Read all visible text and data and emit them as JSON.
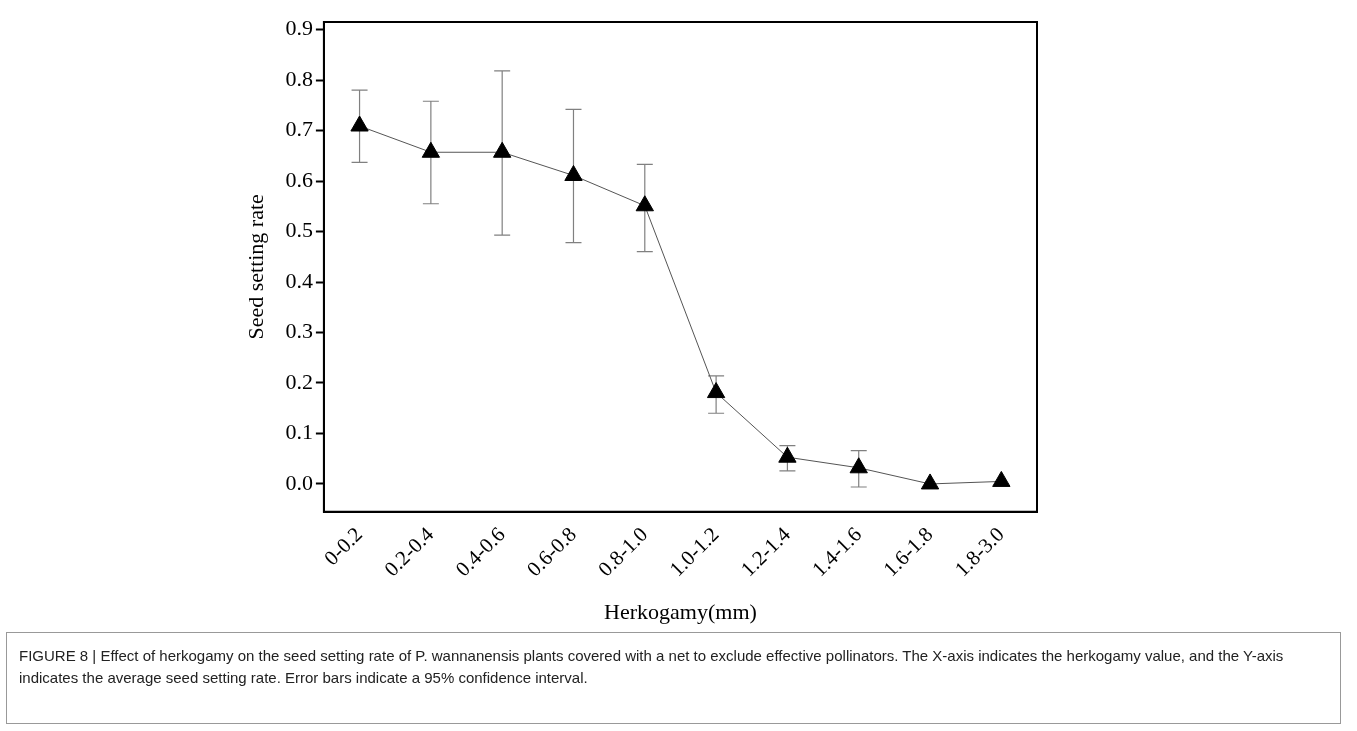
{
  "chart_data": {
    "type": "line",
    "xlabel": "Herkogamy(mm)",
    "ylabel": "Seed setting rate",
    "categories": [
      "0-0.2",
      "0.2-0.4",
      "0.4-0.6",
      "0.6-0.8",
      "0.8-1.0",
      "1.0-1.2",
      "1.2-1.4",
      "1.4-1.6",
      "1.6-1.8",
      "1.8-3.0"
    ],
    "series": [
      {
        "color": "#000000",
        "values": [
          0.709,
          0.657,
          0.657,
          0.611,
          0.551,
          0.181,
          0.053,
          0.032,
          0.0,
          0.005
        ],
        "errors": [
          [
            0.637,
            0.78
          ],
          [
            0.555,
            0.758
          ],
          [
            0.493,
            0.818
          ],
          [
            0.478,
            0.742
          ],
          [
            0.46,
            0.633
          ],
          [
            0.14,
            0.214
          ],
          [
            0.026,
            0.076
          ],
          [
            -0.006,
            0.066
          ],
          null,
          null
        ]
      }
    ],
    "ylim": [
      -0.055,
      0.915
    ],
    "yticks": [
      {
        "value": 0,
        "label": "0.0"
      },
      {
        "value": 0.1,
        "label": "0.1"
      },
      {
        "value": 0.2,
        "label": "0.2"
      },
      {
        "value": 0.3,
        "label": "0.3"
      },
      {
        "value": 0.4,
        "label": "0.4"
      },
      {
        "value": 0.5,
        "label": "0.5"
      },
      {
        "value": 0.6,
        "label": "0.6"
      },
      {
        "value": 0.7,
        "label": "0.7"
      },
      {
        "value": 0.8,
        "label": "0.8"
      },
      {
        "value": 0.9,
        "label": "0.9"
      }
    ],
    "marker": "triangle",
    "line_style": "solid",
    "grid": false,
    "legend": false,
    "annotations": [
      "FIGURE 8 | Effect of herkogamy on the seed setting rate of P. wannanensis plants covered with a net to exclude effective pollinators. The X-axis indicates the herkogamy value, and the Y-axis indicates the average seed setting rate. Error bars indicate a 95% confidence interval."
    ]
  }
}
